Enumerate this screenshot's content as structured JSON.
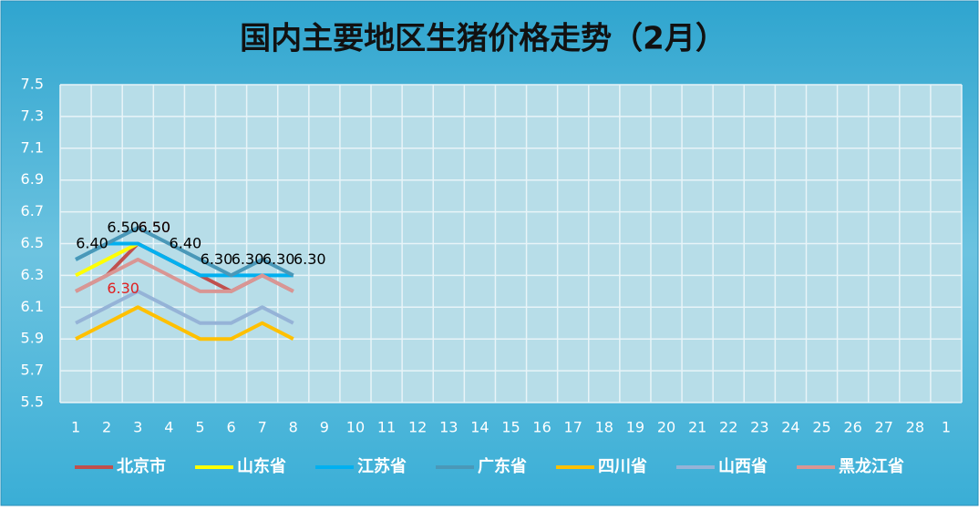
{
  "chart_data": {
    "type": "line",
    "title": "国内主要地区生猪价格走势（2月）",
    "categories": [
      "1",
      "2",
      "3",
      "4",
      "5",
      "6",
      "7",
      "8",
      "9",
      "10",
      "11",
      "12",
      "13",
      "14",
      "15",
      "16",
      "17",
      "18",
      "19",
      "20",
      "21",
      "22",
      "23",
      "24",
      "25",
      "26",
      "27",
      "28",
      "1"
    ],
    "ylim": [
      5.5,
      7.5
    ],
    "yticks": [
      5.5,
      5.7,
      5.9,
      6.1,
      6.3,
      6.5,
      6.7,
      6.9,
      7.1,
      7.3,
      7.5
    ],
    "grid": true,
    "legend": "bottom",
    "series": [
      {
        "name": "北京市",
        "color": "#c0504d",
        "values": [
          6.2,
          6.3,
          6.5,
          6.4,
          6.3,
          6.2,
          6.3,
          6.2,
          null,
          null,
          null,
          null,
          null,
          null,
          null,
          null,
          null,
          null,
          null,
          null,
          null,
          null,
          null,
          null,
          null,
          null,
          null,
          null,
          null
        ],
        "value_labels": [
          null,
          "6.30",
          "6.50",
          null,
          null,
          null,
          null,
          null,
          null,
          null,
          null,
          null,
          null,
          null,
          null,
          null,
          null,
          null,
          null,
          null,
          null,
          null,
          null,
          null,
          null,
          null,
          null,
          null,
          null
        ],
        "label_color": "#e02020"
      },
      {
        "name": "山东省",
        "color": "#ffff00",
        "values": [
          6.3,
          6.4,
          6.5,
          null,
          null,
          null,
          null,
          null,
          null,
          null,
          null,
          null,
          null,
          null,
          null,
          null,
          null,
          null,
          null,
          null,
          null,
          null,
          null,
          null,
          null,
          null,
          null,
          null,
          null
        ]
      },
      {
        "name": "江苏省",
        "color": "#00b0f0",
        "values": [
          6.4,
          6.5,
          6.5,
          6.4,
          6.3,
          6.3,
          6.3,
          6.3,
          null,
          null,
          null,
          null,
          null,
          null,
          null,
          null,
          null,
          null,
          null,
          null,
          null,
          null,
          null,
          null,
          null,
          null,
          null,
          null,
          null
        ],
        "value_labels": [
          "6.40",
          "6.50",
          "6.50",
          "6.40",
          "6.30",
          "6.30",
          "6.30",
          "6.30",
          null,
          null,
          null,
          null,
          null,
          null,
          null,
          null,
          null,
          null,
          null,
          null,
          null,
          null,
          null,
          null,
          null,
          null,
          null,
          null,
          null
        ],
        "label_color": "#000000"
      },
      {
        "name": "广东省",
        "color": "#4a98b8",
        "values": [
          6.4,
          6.5,
          6.6,
          6.5,
          6.4,
          6.3,
          6.4,
          6.3,
          null,
          null,
          null,
          null,
          null,
          null,
          null,
          null,
          null,
          null,
          null,
          null,
          null,
          null,
          null,
          null,
          null,
          null,
          null,
          null,
          null
        ]
      },
      {
        "name": "四川省",
        "color": "#ffc000",
        "values": [
          5.9,
          6.0,
          6.1,
          6.0,
          5.9,
          5.9,
          6.0,
          5.9,
          null,
          null,
          null,
          null,
          null,
          null,
          null,
          null,
          null,
          null,
          null,
          null,
          null,
          null,
          null,
          null,
          null,
          null,
          null,
          null,
          null
        ]
      },
      {
        "name": "山西省",
        "color": "#95b3d7",
        "values": [
          6.0,
          6.1,
          6.2,
          6.1,
          6.0,
          6.0,
          6.1,
          6.0,
          null,
          null,
          null,
          null,
          null,
          null,
          null,
          null,
          null,
          null,
          null,
          null,
          null,
          null,
          null,
          null,
          null,
          null,
          null,
          null,
          null
        ]
      },
      {
        "name": "黑龙江省",
        "color": "#d99694",
        "values": [
          6.2,
          6.3,
          6.4,
          6.3,
          6.2,
          6.2,
          6.3,
          6.2,
          null,
          null,
          null,
          null,
          null,
          null,
          null,
          null,
          null,
          null,
          null,
          null,
          null,
          null,
          null,
          null,
          null,
          null,
          null,
          null,
          null
        ]
      }
    ]
  }
}
